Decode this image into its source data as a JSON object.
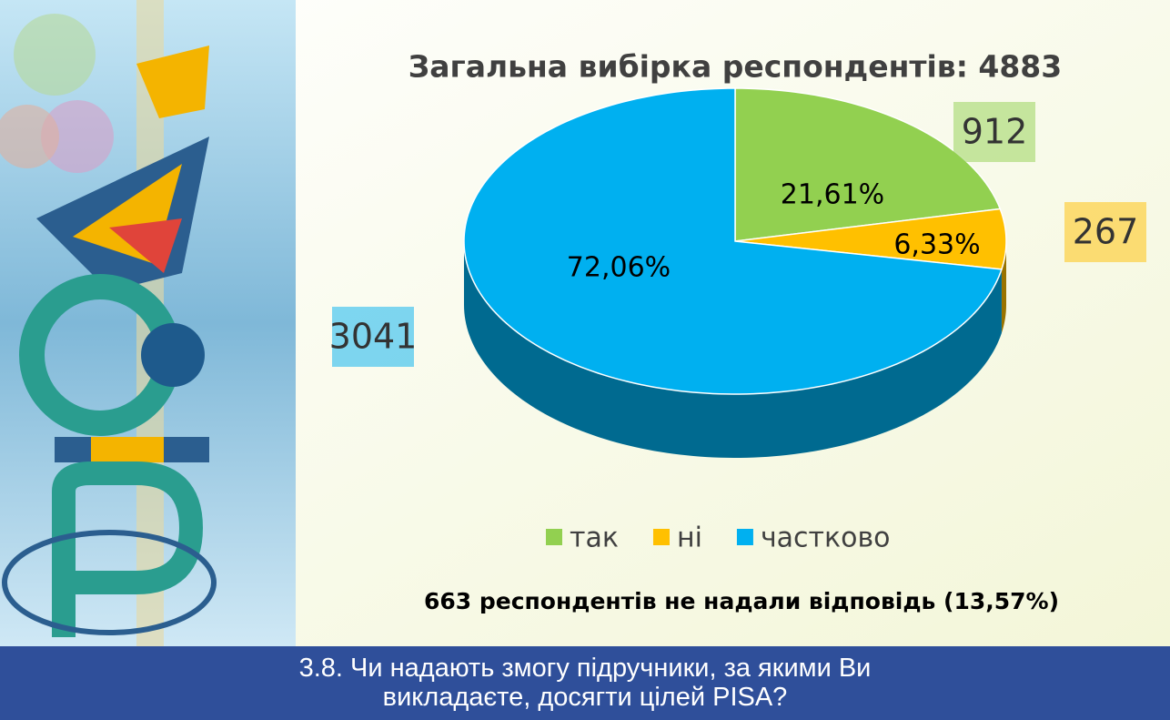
{
  "chart_data": {
    "type": "pie",
    "title": "Загальна вибірка респондентів: 4883",
    "categories": [
      "так",
      "ні",
      "частково"
    ],
    "values": [
      21.61,
      6.33,
      72.06
    ],
    "value_labels": [
      "21,61%",
      "6,33%",
      "72,06%"
    ],
    "counts": [
      912,
      267,
      3041
    ],
    "colors": [
      "#92d050",
      "#ffc000",
      "#00b0f0"
    ],
    "legend": "bottom",
    "annotation": "663 респондентів не надали відповідь (13,57%)"
  },
  "footer": {
    "question": "3.8. Чи надають змогу підручники, за якими Ви викладаєте, досягти цілей PISA?"
  }
}
